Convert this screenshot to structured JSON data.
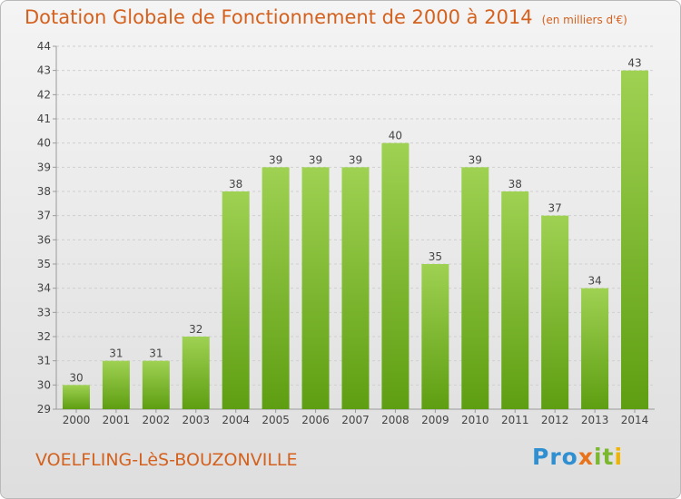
{
  "title": "Dotation Globale de Fonctionnement de 2000 à 2014",
  "unit_note": "(en milliers d'€)",
  "place": "VOELFLING-LèS-BOUZONVILLE",
  "logo": {
    "text": "Proxiti",
    "parts": [
      "Pro",
      "x",
      "it",
      "i"
    ]
  },
  "colors": {
    "title": "#d4611e",
    "bar_light": "#9fd152",
    "bar_dark": "#5e9e12"
  },
  "chart_data": {
    "type": "bar",
    "title": "Dotation Globale de Fonctionnement de 2000 à 2014",
    "categories": [
      "2000",
      "2001",
      "2002",
      "2003",
      "2004",
      "2005",
      "2006",
      "2007",
      "2008",
      "2009",
      "2010",
      "2011",
      "2012",
      "2013",
      "2014"
    ],
    "values": [
      30,
      31,
      31,
      32,
      38,
      39,
      39,
      39,
      40,
      35,
      39,
      38,
      37,
      34,
      43
    ],
    "ylim": [
      29,
      44
    ],
    "yticks": [
      29,
      30,
      31,
      32,
      33,
      34,
      35,
      36,
      37,
      38,
      39,
      40,
      41,
      42,
      43,
      44
    ],
    "grid": true
  }
}
